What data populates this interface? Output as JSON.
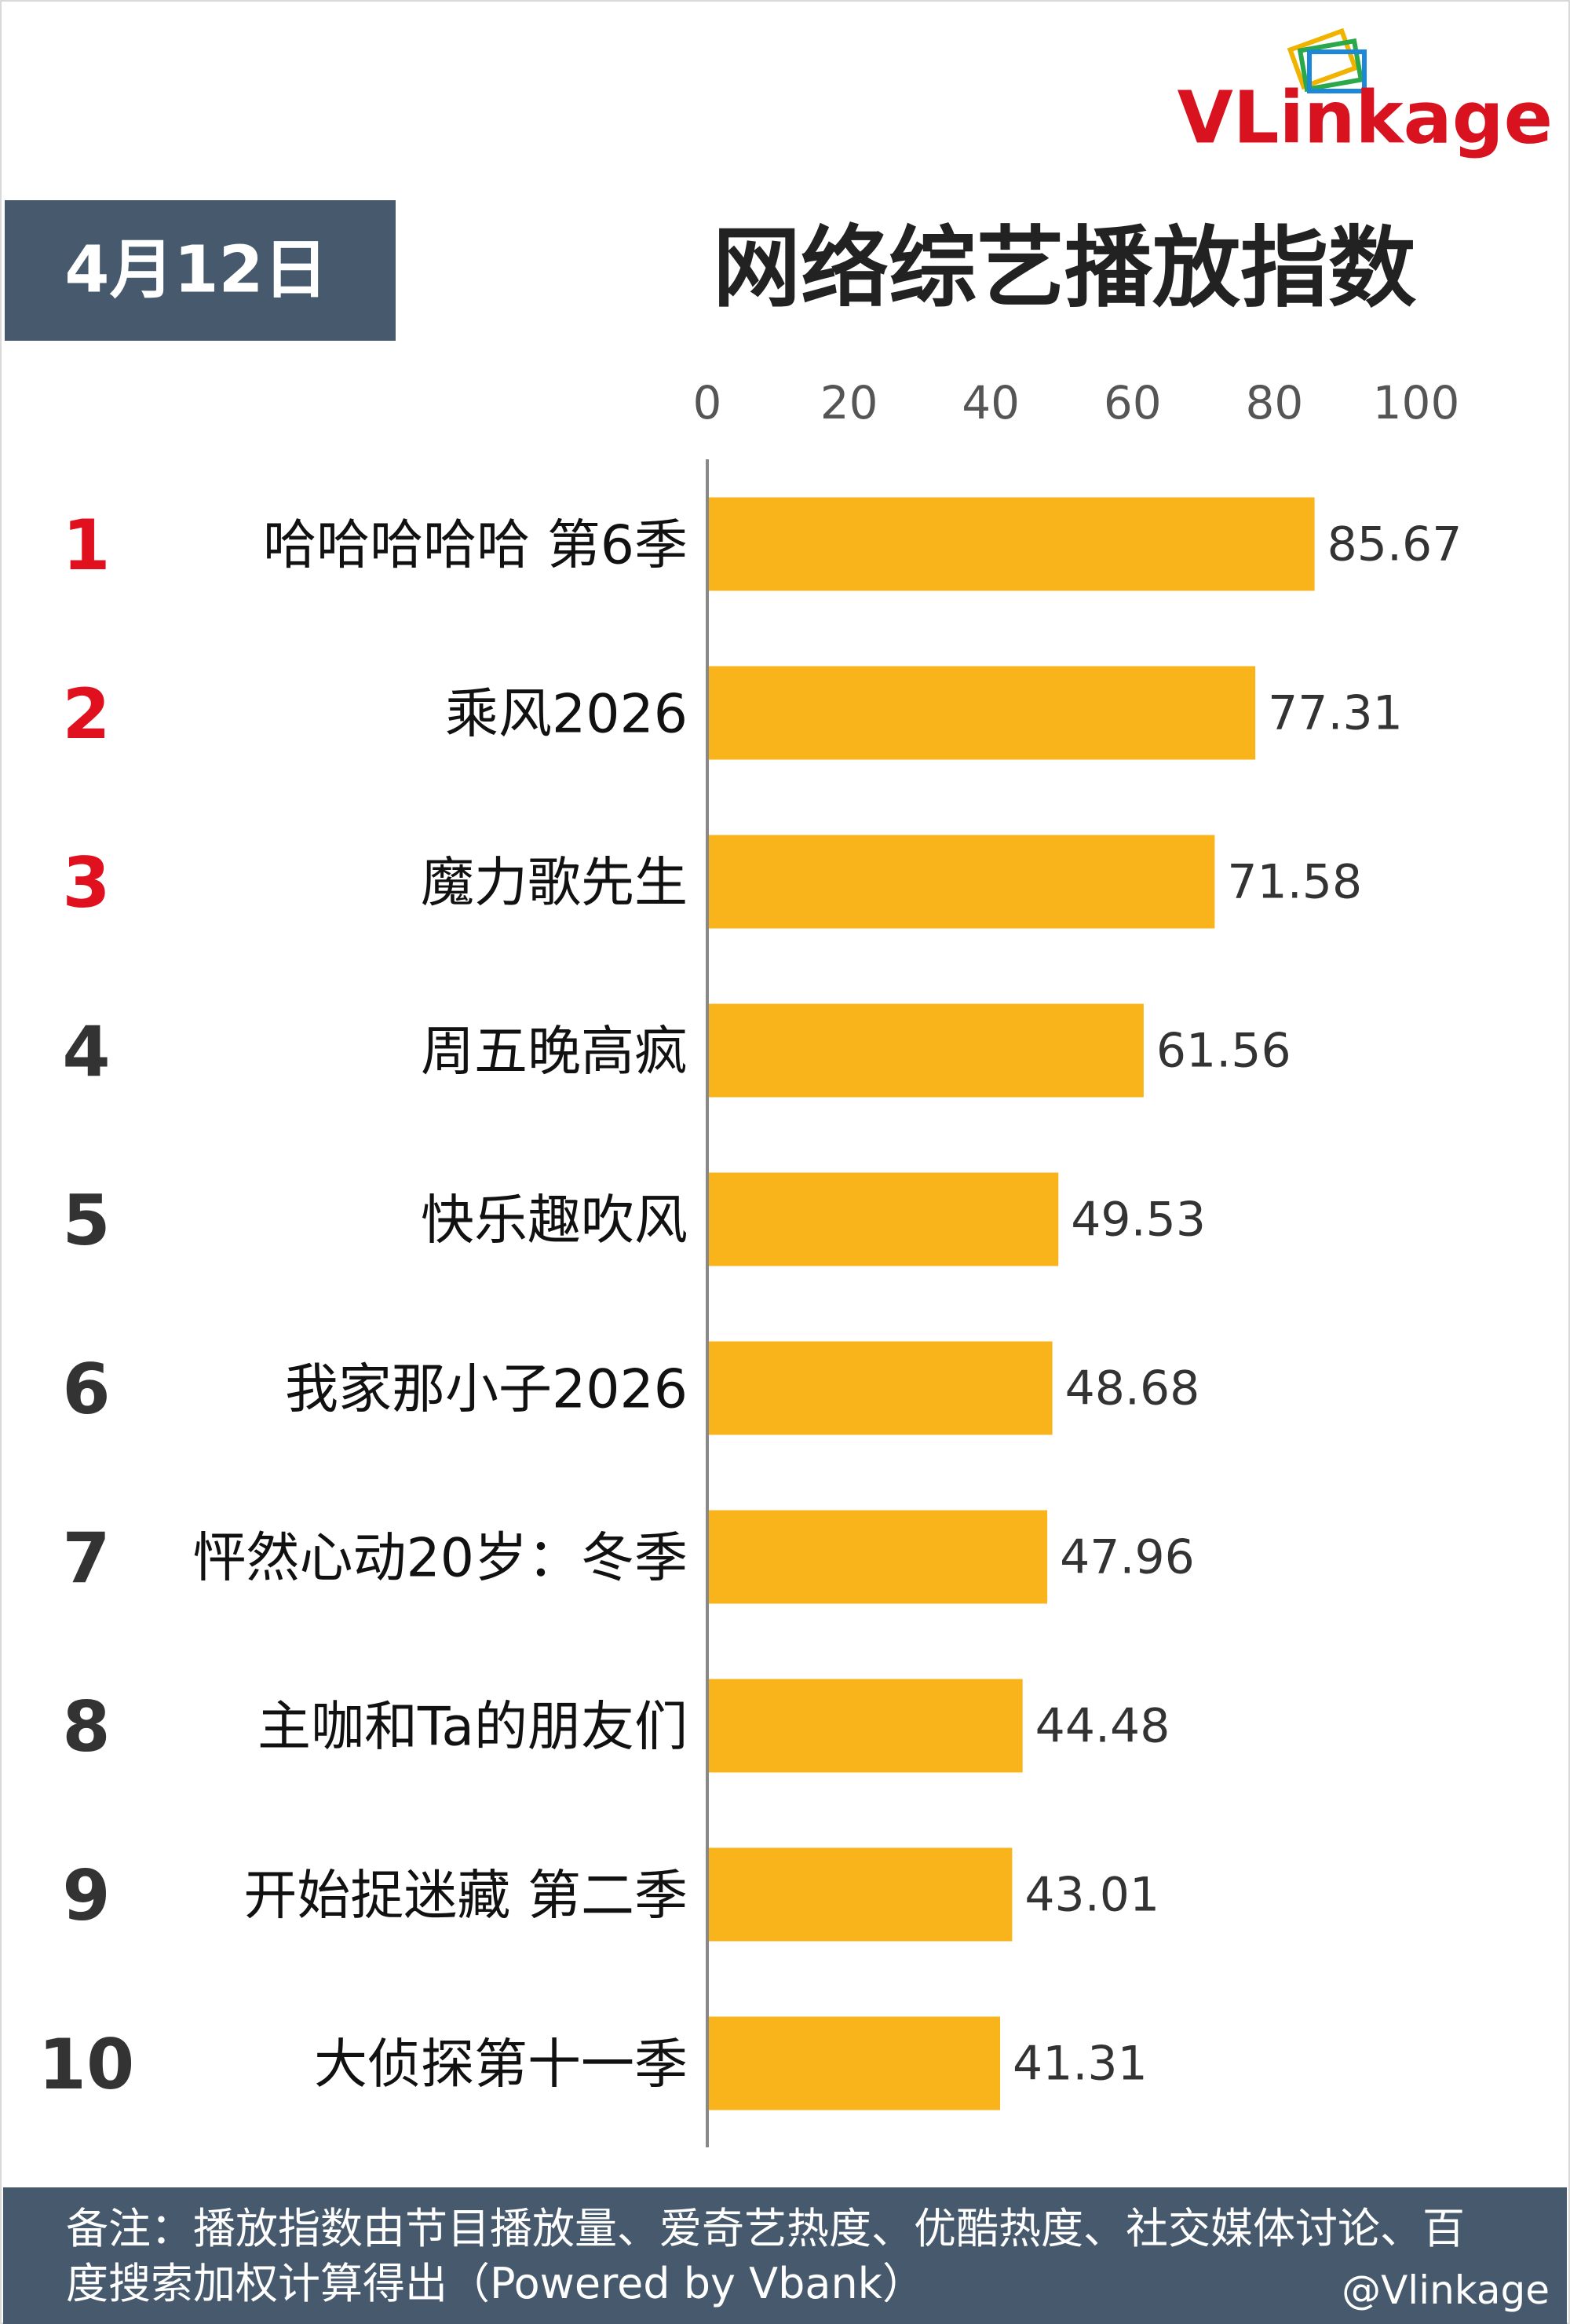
{
  "chart_data": {
    "type": "bar",
    "logo": "VLinkage",
    "date": "4月12日",
    "title": "网络综艺播放指数",
    "ranks": [
      1,
      2,
      3,
      4,
      5,
      6,
      7,
      8,
      9,
      10
    ],
    "categories": [
      "哈哈哈哈哈 第6季",
      "乘风2026",
      "魔力歌先生",
      "周五晚高疯",
      "快乐趣吹风",
      "我家那小子2026",
      "怦然心动20岁：冬季",
      "主咖和Ta的朋友们",
      "开始捉迷藏 第二季",
      "大侦探第十一季"
    ],
    "values": [
      85.67,
      77.31,
      71.58,
      61.56,
      49.53,
      48.68,
      47.96,
      44.48,
      43.01,
      41.31
    ],
    "color": "#f9b31b",
    "top_rank_color": "#e0101f",
    "rank_color": "#333333",
    "xlim": [
      0,
      100
    ],
    "xticks": [
      0,
      20,
      40,
      60,
      80,
      100
    ],
    "note": "备注：播放指数由节目播放量、爱奇艺热度、优酷热度、社交媒体讨论、百度搜索加权计算得出（Powered by Vbank）",
    "watermark": "@Vlinkage"
  }
}
